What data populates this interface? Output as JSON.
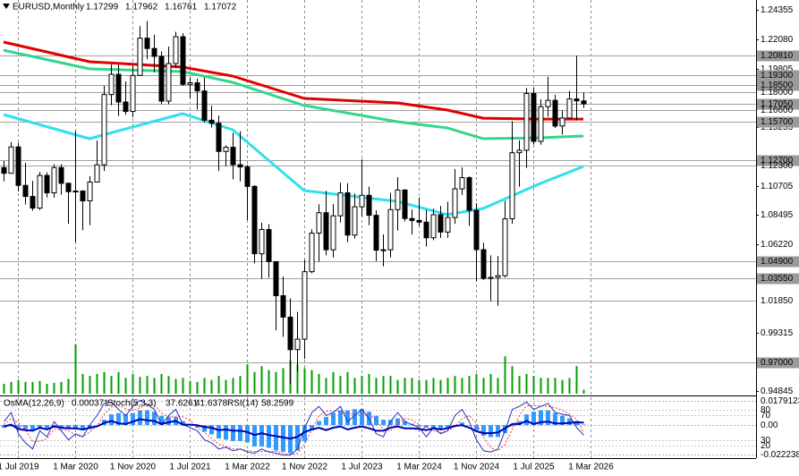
{
  "chart_data": {
    "type": "candlestick",
    "title": "EURUSD,Monthly",
    "categories": [
      "2019-05-01",
      "2019-06-01",
      "2019-07-01",
      "2019-08-01",
      "2019-09-01",
      "2019-10-01",
      "2019-11-01",
      "2019-12-01",
      "2020-01-01",
      "2020-02-01",
      "2020-03-01",
      "2020-04-01",
      "2020-05-01",
      "2020-06-01",
      "2020-07-01",
      "2020-08-01",
      "2020-09-01",
      "2020-10-01",
      "2020-11-01",
      "2020-12-01",
      "2021-01-01",
      "2021-02-01",
      "2021-03-01",
      "2021-04-01",
      "2021-05-01",
      "2021-06-01",
      "2021-07-01",
      "2021-08-01",
      "2021-09-01",
      "2021-10-01",
      "2021-11-01",
      "2021-12-01",
      "2022-01-01",
      "2022-02-01",
      "2022-03-01",
      "2022-04-01",
      "2022-05-01",
      "2022-06-01",
      "2022-07-01",
      "2022-08-01",
      "2022-09-01",
      "2022-10-01",
      "2022-11-01",
      "2022-12-01",
      "2023-01-01",
      "2023-02-01",
      "2023-03-01",
      "2023-04-01",
      "2023-05-01",
      "2023-06-01",
      "2023-07-01",
      "2023-08-01",
      "2023-09-01",
      "2023-10-01",
      "2023-11-01",
      "2023-12-01",
      "2024-01-01",
      "2024-02-01",
      "2024-03-01",
      "2024-04-01",
      "2024-05-01",
      "2024-06-01",
      "2024-07-01",
      "2024-08-01",
      "2024-09-01",
      "2024-10-01",
      "2024-11-01",
      "2024-12-01",
      "2025-01-01",
      "2025-02-01",
      "2025-03-01",
      "2025-04-01",
      "2025-05-01",
      "2025-06-01",
      "2025-07-01",
      "2025-08-01",
      "2025-09-01",
      "2025-10-01",
      "2025-11-01",
      "2025-12-01",
      "2026-01-01",
      "2026-02-01"
    ],
    "open": [
      1.1213,
      1.1169,
      1.1373,
      1.1075,
      1.0989,
      1.0899,
      1.1152,
      1.1017,
      1.1213,
      1.1091,
      1.1026,
      1.1031,
      1.0955,
      1.1101,
      1.1234,
      1.1779,
      1.1936,
      1.1721,
      1.1648,
      1.1927,
      1.2216,
      1.2136,
      1.2075,
      1.1728,
      1.2019,
      1.2227,
      1.1858,
      1.187,
      1.1807,
      1.158,
      1.1557,
      1.1338,
      1.137,
      1.1235,
      1.1218,
      1.1067,
      1.0545,
      1.0733,
      1.0484,
      1.022,
      1.0054,
      0.9802,
      0.9883,
      1.0406,
      1.0705,
      1.0863,
      1.0576,
      1.0839,
      1.1017,
      1.069,
      1.0909,
      1.0998,
      1.0843,
      1.0573,
      1.0576,
      1.0887,
      1.1039,
      1.0818,
      1.0803,
      1.079,
      1.0669,
      1.0848,
      1.0713,
      1.0826,
      1.1048,
      1.1135,
      1.0882,
      1.0577,
      1.0354,
      1.0362,
      1.0375,
      1.0816,
      1.1328,
      1.1347,
      1.1787,
      1.1416,
      1.1685,
      1.1734,
      1.1535,
      1.1597,
      1.1745,
      1.17299
    ],
    "high": [
      1.1264,
      1.1412,
      1.1405,
      1.125,
      1.111,
      1.1179,
      1.1175,
      1.1239,
      1.1239,
      1.1096,
      1.1495,
      1.1038,
      1.1147,
      1.1422,
      1.1846,
      1.2011,
      1.2011,
      1.1881,
      1.2004,
      1.231,
      1.2349,
      1.2243,
      1.2113,
      1.215,
      1.2266,
      1.2254,
      1.1909,
      1.1902,
      1.1909,
      1.1692,
      1.1616,
      1.1386,
      1.1482,
      1.1495,
      1.1233,
      1.1076,
      1.0786,
      1.0774,
      1.0487,
      1.0368,
      1.0198,
      1.0094,
      1.0497,
      1.0736,
      1.0929,
      1.1033,
      1.093,
      1.1095,
      1.1092,
      1.1012,
      1.1276,
      1.1065,
      1.0882,
      1.0695,
      1.1017,
      1.1139,
      1.1046,
      1.0888,
      1.0981,
      1.0885,
      1.0895,
      1.0916,
      1.0948,
      1.1202,
      1.1214,
      1.1145,
      1.0937,
      1.063,
      1.0533,
      1.0528,
      1.0955,
      1.1573,
      1.1424,
      1.183,
      1.183,
      1.1743,
      1.1918,
      1.1778,
      1.1655,
      1.1808,
      1.2081,
      1.17962
    ],
    "low": [
      1.1107,
      1.1168,
      1.1028,
      1.0927,
      1.0879,
      1.0885,
      1.0981,
      1.0981,
      1.1003,
      1.0778,
      1.0636,
      1.0727,
      1.0766,
      1.1097,
      1.1186,
      1.1696,
      1.1612,
      1.1622,
      1.1603,
      1.1924,
      1.2054,
      1.1952,
      1.1704,
      1.1704,
      1.1986,
      1.1847,
      1.1752,
      1.1664,
      1.1563,
      1.1524,
      1.1186,
      1.1222,
      1.1121,
      1.1106,
      1.0806,
      1.047,
      1.0349,
      1.0359,
      0.9952,
      0.9901,
      0.9536,
      0.9632,
      0.973,
      1.0393,
      1.0483,
      1.0533,
      1.0516,
      1.0788,
      1.0635,
      1.0663,
      1.0833,
      1.0766,
      1.0488,
      1.0448,
      1.0516,
      1.0724,
      1.0795,
      1.0695,
      1.0762,
      1.0601,
      1.065,
      1.0668,
      1.0668,
      1.0777,
      1.1001,
      1.0761,
      1.0333,
      1.0343,
      1.0178,
      1.0141,
      1.036,
      1.0778,
      1.1065,
      1.121,
      1.1392,
      1.139,
      1.1608,
      1.152,
      1.1468,
      1.159,
      1.1579,
      1.16761
    ],
    "close": [
      1.1169,
      1.1373,
      1.1075,
      1.0989,
      1.0899,
      1.1152,
      1.1017,
      1.1213,
      1.1091,
      1.1026,
      1.1031,
      1.0955,
      1.1101,
      1.1234,
      1.1779,
      1.1936,
      1.1721,
      1.1648,
      1.1927,
      1.2216,
      1.2136,
      1.2075,
      1.1728,
      1.2019,
      1.2227,
      1.1858,
      1.187,
      1.1807,
      1.158,
      1.1557,
      1.1338,
      1.137,
      1.1235,
      1.1218,
      1.1067,
      1.0545,
      1.0733,
      1.0484,
      1.022,
      1.0054,
      0.9802,
      0.9883,
      1.0406,
      1.0705,
      1.0863,
      1.0576,
      1.0839,
      1.1017,
      1.069,
      1.0909,
      1.0998,
      1.0843,
      1.0573,
      1.0576,
      1.0887,
      1.1039,
      1.0818,
      1.0803,
      1.079,
      1.0669,
      1.0848,
      1.0713,
      1.0826,
      1.1048,
      1.1135,
      1.0882,
      1.0577,
      1.0354,
      1.0362,
      1.0375,
      1.0816,
      1.1328,
      1.1347,
      1.1787,
      1.1416,
      1.1685,
      1.1734,
      1.1535,
      1.1597,
      1.1745,
      1.17299,
      1.17072
    ],
    "volume": [
      10,
      12,
      14,
      12,
      12,
      13,
      10,
      11,
      12,
      15,
      50,
      20,
      18,
      20,
      22,
      18,
      22,
      16,
      20,
      17,
      18,
      16,
      20,
      18,
      15,
      16,
      13,
      12,
      16,
      14,
      18,
      14,
      16,
      18,
      30,
      22,
      28,
      24,
      22,
      26,
      34,
      30,
      26,
      24,
      20,
      16,
      22,
      18,
      22,
      16,
      18,
      20,
      16,
      18,
      18,
      14,
      16,
      16,
      14,
      14,
      16,
      14,
      16,
      18,
      16,
      18,
      20,
      16,
      20,
      16,
      38,
      28,
      18,
      20,
      18,
      16,
      16,
      16,
      14,
      16,
      28,
      4
    ],
    "volume_color": "#00a000",
    "up_color": "#ffffff",
    "down_color": "#000000",
    "ylim": [
      0.94466,
      1.25118
    ],
    "yticks": [
      1.24355,
      {
        "value": 1.2208,
        "label": "1.22080"
      },
      1.19805,
      1.15255,
      1.10705,
      1.08495,
      {
        "value": 1.0622,
        "label": "1.06220"
      },
      0.99315,
      0.94845
    ],
    "levels": [
      {
        "value": 1.2081,
        "label": "1.20810",
        "boxed": true
      },
      {
        "value": 1.193,
        "label": "1.19300",
        "boxed": true
      },
      {
        "value": 1.185,
        "label": "1.18500",
        "boxed": true
      },
      {
        "value": 1.18,
        "label": "1.18000",
        "boxed": false
      },
      {
        "value": 1.1705,
        "label": "1.17050",
        "boxed": true
      },
      {
        "value": 1.166,
        "label": "1.16600",
        "boxed": false
      },
      {
        "value": 1.157,
        "label": "1.15700",
        "boxed": true
      },
      {
        "value": 1.127,
        "label": "1.12700",
        "boxed": true
      },
      {
        "value": 1.123,
        "label": "1.12300",
        "boxed": false
      },
      {
        "value": 1.049,
        "label": "1.04900",
        "boxed": true
      },
      {
        "value": 1.0355,
        "label": "1.03550",
        "boxed": true
      },
      {
        "value": 1.0185,
        "label": "1.01850",
        "boxed": false
      },
      {
        "value": 0.97,
        "label": "0.97000",
        "boxed": true
      }
    ],
    "moving_averages": [
      {
        "color": "#e00000",
        "width": 3,
        "dates": [
          "2019-05-01",
          "2020-05-01",
          "2021-06-01",
          "2022-01-01",
          "2022-11-01",
          "2023-12-01",
          "2024-07-01",
          "2024-12-01",
          "2025-08-01",
          "2026-02-01"
        ],
        "values": [
          1.2186,
          1.2033,
          1.1992,
          1.1922,
          1.1749,
          1.1714,
          1.1659,
          1.1596,
          1.1589,
          1.1589
        ]
      },
      {
        "color": "#33d68c",
        "width": 3,
        "dates": [
          "2019-05-01",
          "2020-05-01",
          "2021-06-01",
          "2022-01-01",
          "2022-11-01",
          "2023-12-01",
          "2024-07-01",
          "2024-12-01",
          "2025-08-01",
          "2026-02-01"
        ],
        "values": [
          1.2123,
          1.1978,
          1.1957,
          1.1874,
          1.1694,
          1.1569,
          1.152,
          1.1437,
          1.1444,
          1.1458
        ]
      },
      {
        "color": "#30e0ec",
        "width": 3,
        "dates": [
          "2019-05-01",
          "2020-05-01",
          "2021-06-01",
          "2022-01-01",
          "2022-11-01",
          "2023-12-01",
          "2024-07-01",
          "2024-12-01",
          "2025-08-01",
          "2026-02-01"
        ],
        "values": [
          1.1624,
          1.1437,
          1.1631,
          1.1506,
          1.1035,
          1.0951,
          1.0848,
          1.0896,
          1.109,
          1.1222
        ]
      }
    ],
    "xticks": [
      {
        "value": "2019-07-01",
        "label": "1 Jul 2019"
      },
      {
        "value": "2020-03-01",
        "label": "1 Mar 2020"
      },
      {
        "value": "2020-11-01",
        "label": "1 Nov 2020"
      },
      {
        "value": "2021-07-01",
        "label": "1 Jul 2021"
      },
      {
        "value": "2022-03-01",
        "label": "1 Mar 2022"
      },
      {
        "value": "2022-11-01",
        "label": "1 Nov 2022"
      },
      {
        "value": "2023-07-01",
        "label": "1 Jul 2023"
      },
      {
        "value": "2024-03-01",
        "label": "1 Mar 2024"
      },
      {
        "value": "2024-11-01",
        "label": "1 Nov 2024"
      },
      {
        "value": "2025-07-01",
        "label": "1 Jul 2025"
      },
      {
        "value": "2026-03-01",
        "label": "1 Mar 2026"
      }
    ],
    "grid": true,
    "indicators": {
      "osma": {
        "name": "OsMA(12,26,9)",
        "color": "#3399ff",
        "values": [
          -0.002,
          -0.001,
          -0.002,
          -0.003,
          -0.004,
          -0.003,
          -0.003,
          -0.002,
          -0.002,
          -0.003,
          -0.003,
          -0.004,
          -0.003,
          0.0,
          0.004,
          0.008,
          0.009,
          0.008,
          0.009,
          0.011,
          0.011,
          0.01,
          0.007,
          0.006,
          0.006,
          0.003,
          0.0,
          -0.002,
          -0.005,
          -0.007,
          -0.01,
          -0.011,
          -0.012,
          -0.012,
          -0.013,
          -0.016,
          -0.016,
          -0.017,
          -0.019,
          -0.02,
          -0.021,
          -0.019,
          -0.012,
          -0.004,
          0.003,
          0.006,
          0.009,
          0.011,
          0.011,
          0.012,
          0.012,
          0.01,
          0.007,
          0.004,
          0.004,
          0.005,
          0.003,
          0.001,
          -0.001,
          -0.002,
          -0.002,
          -0.003,
          -0.002,
          0.0,
          0.002,
          0.0,
          -0.004,
          -0.008,
          -0.009,
          -0.009,
          -0.006,
          -0.001,
          0.003,
          0.008,
          0.01,
          0.011,
          0.011,
          0.009,
          0.007,
          0.005,
          0.003,
          0.000371
        ],
        "ylim": [
          -0.0247,
          0.0208
        ],
        "yticks": [
          0.0179123,
          {
            "value": 0,
            "label": "0.00"
          },
          -0.022238
        ]
      },
      "stoch": {
        "name": "Stoch(5,3,3)",
        "main_color": "#2030c0",
        "signal_color": "#ff3030",
        "main": [
          60,
          75,
          40,
          25,
          15,
          45,
          35,
          60,
          45,
          30,
          40,
          35,
          55,
          70,
          90,
          92,
          80,
          70,
          85,
          95,
          88,
          80,
          55,
          70,
          80,
          55,
          50,
          45,
          30,
          25,
          15,
          18,
          12,
          15,
          10,
          8,
          15,
          10,
          8,
          5,
          5,
          15,
          50,
          75,
          85,
          70,
          75,
          85,
          60,
          70,
          80,
          65,
          40,
          35,
          60,
          75,
          60,
          55,
          50,
          35,
          50,
          40,
          45,
          70,
          80,
          60,
          30,
          12,
          10,
          15,
          45,
          80,
          85,
          92,
          80,
          85,
          90,
          75,
          72,
          70,
          50,
          37.6261
        ],
        "signal": [
          55,
          65,
          58,
          47,
          27,
          28,
          32,
          47,
          47,
          45,
          38,
          35,
          43,
          53,
          72,
          84,
          87,
          81,
          78,
          83,
          89,
          88,
          74,
          68,
          68,
          68,
          62,
          50,
          42,
          33,
          23,
          19,
          15,
          15,
          12,
          11,
          11,
          11,
          11,
          8,
          6,
          8,
          23,
          47,
          70,
          77,
          77,
          77,
          73,
          72,
          70,
          72,
          62,
          47,
          45,
          57,
          65,
          63,
          55,
          47,
          45,
          42,
          45,
          52,
          65,
          70,
          57,
          34,
          17,
          12,
          23,
          47,
          70,
          86,
          86,
          86,
          85,
          83,
          79,
          72,
          64,
          41.6378
        ]
      },
      "rsi": {
        "name": "RSI(14)",
        "color": "#0000b0",
        "values": [
          52,
          55,
          48,
          46,
          45,
          50,
          47,
          52,
          50,
          49,
          49,
          47,
          50,
          52,
          58,
          61,
          57,
          56,
          60,
          64,
          62,
          61,
          56,
          59,
          61,
          55,
          55,
          54,
          51,
          50,
          46,
          47,
          45,
          45,
          43,
          38,
          41,
          38,
          36,
          34,
          32,
          35,
          43,
          47,
          50,
          46,
          50,
          52,
          47,
          50,
          52,
          49,
          45,
          45,
          50,
          52,
          49,
          49,
          48,
          46,
          49,
          47,
          49,
          53,
          54,
          50,
          44,
          41,
          41,
          42,
          49,
          56,
          56,
          61,
          56,
          59,
          60,
          57,
          57,
          58,
          59,
          58.2599
        ]
      },
      "osc_ylim": [
        0,
        100
      ],
      "osc_ticks": [
        80,
        70,
        30,
        20
      ]
    }
  }
}
